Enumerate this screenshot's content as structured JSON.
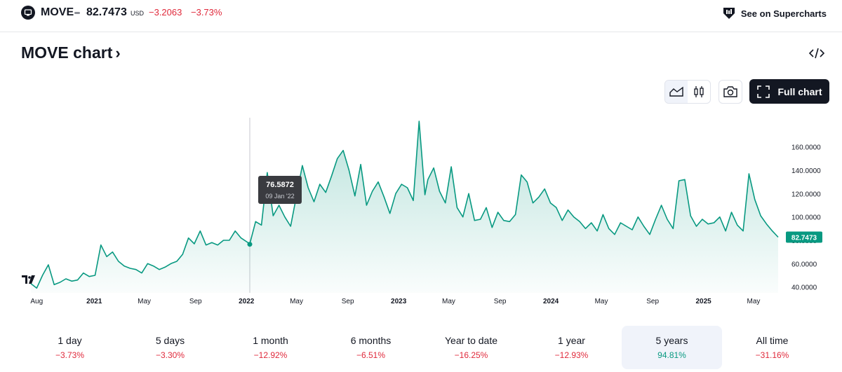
{
  "header": {
    "symbol": "MOVE",
    "price": "82.7473",
    "currency": "USD",
    "change": "−3.2063",
    "change_percent": "−3.73%",
    "supercharts_label": "See on Supercharts"
  },
  "title": {
    "text": "MOVE chart",
    "chevron": "›"
  },
  "toolbar": {
    "full_chart_label": "Full chart"
  },
  "icons": [
    "symbol-logo-icon",
    "supercharts-icon",
    "embed-code-icon",
    "area-chart-icon",
    "candles-icon",
    "camera-icon",
    "fullscreen-icon"
  ],
  "colors": {
    "line": "#089981",
    "negative": "#e0293b",
    "positive": "#089981",
    "price_label_bg": "#089981",
    "tooltip_bg": "#3a3b40"
  },
  "chart_data": {
    "type": "area",
    "x": [
      "2020-08-02",
      "2020-08-16",
      "2020-08-30",
      "2020-09-13",
      "2020-09-27",
      "2020-10-11",
      "2020-10-25",
      "2020-11-08",
      "2020-11-22",
      "2020-12-06",
      "2020-12-20",
      "2021-01-03",
      "2021-01-17",
      "2021-01-31",
      "2021-02-14",
      "2021-02-28",
      "2021-03-14",
      "2021-03-28",
      "2021-04-11",
      "2021-04-25",
      "2021-05-09",
      "2021-05-23",
      "2021-06-06",
      "2021-06-20",
      "2021-07-04",
      "2021-07-18",
      "2021-08-01",
      "2021-08-15",
      "2021-08-29",
      "2021-09-12",
      "2021-09-26",
      "2021-10-10",
      "2021-10-24",
      "2021-11-07",
      "2021-11-21",
      "2021-12-05",
      "2021-12-19",
      "2022-01-09",
      "2022-01-23",
      "2022-02-06",
      "2022-02-20",
      "2022-03-06",
      "2022-03-20",
      "2022-04-03",
      "2022-04-17",
      "2022-05-01",
      "2022-05-15",
      "2022-05-29",
      "2022-06-12",
      "2022-06-26",
      "2022-07-10",
      "2022-07-24",
      "2022-08-07",
      "2022-08-21",
      "2022-09-04",
      "2022-09-18",
      "2022-10-02",
      "2022-10-16",
      "2022-10-30",
      "2022-11-13",
      "2022-11-27",
      "2022-12-11",
      "2022-12-25",
      "2023-01-08",
      "2023-01-22",
      "2023-02-05",
      "2023-02-19",
      "2023-03-05",
      "2023-03-12",
      "2023-03-26",
      "2023-04-09",
      "2023-04-23",
      "2023-05-07",
      "2023-05-21",
      "2023-06-04",
      "2023-06-18",
      "2023-07-02",
      "2023-07-16",
      "2023-07-30",
      "2023-08-13",
      "2023-08-27",
      "2023-09-10",
      "2023-09-24",
      "2023-10-08",
      "2023-10-22",
      "2023-11-05",
      "2023-11-19",
      "2023-12-03",
      "2023-12-17",
      "2023-12-31",
      "2024-01-14",
      "2024-01-28",
      "2024-02-11",
      "2024-02-25",
      "2024-03-10",
      "2024-03-24",
      "2024-04-07",
      "2024-04-21",
      "2024-05-05",
      "2024-05-19",
      "2024-06-02",
      "2024-06-16",
      "2024-06-30",
      "2024-07-14",
      "2024-07-28",
      "2024-08-11",
      "2024-08-25",
      "2024-09-08",
      "2024-09-22",
      "2024-10-06",
      "2024-10-20",
      "2024-11-03",
      "2024-11-17",
      "2024-12-01",
      "2024-12-15",
      "2024-12-29",
      "2025-01-12",
      "2025-01-26",
      "2025-02-09",
      "2025-02-23",
      "2025-03-09",
      "2025-03-23",
      "2025-04-06",
      "2025-04-20",
      "2025-05-04",
      "2025-05-18",
      "2025-06-01",
      "2025-06-15",
      "2025-06-29"
    ],
    "values": [
      43,
      39,
      50,
      59,
      42,
      44,
      47,
      45,
      46,
      52,
      49,
      50,
      76,
      66,
      70,
      62,
      58,
      56,
      55,
      52,
      60,
      58,
      55,
      57,
      60,
      62,
      68,
      82,
      77,
      88,
      76,
      78,
      76,
      80,
      80,
      88,
      82,
      77,
      96,
      93,
      138,
      101,
      110,
      100,
      92,
      118,
      144,
      125,
      113,
      128,
      121,
      135,
      150,
      157,
      140,
      118,
      145,
      110,
      122,
      130,
      117,
      103,
      120,
      128,
      125,
      114,
      182,
      119,
      132,
      142,
      122,
      112,
      143,
      108,
      100,
      120,
      97,
      98,
      108,
      91,
      104,
      97,
      96,
      102,
      136,
      130,
      112,
      117,
      124,
      112,
      108,
      97,
      106,
      100,
      96,
      90,
      95,
      88,
      102,
      90,
      85,
      95,
      92,
      89,
      100,
      92,
      85,
      98,
      110,
      98,
      90,
      131,
      132,
      101,
      92,
      98,
      94,
      95,
      100,
      88,
      104,
      93,
      88,
      137,
      115,
      101,
      94,
      88,
      82.7
    ],
    "title": "MOVE chart",
    "ylim": [
      35,
      185
    ],
    "y_ticks": [
      40,
      60,
      80,
      100,
      120,
      140,
      160
    ],
    "y_tick_labels": [
      "40.0000",
      "60.0000",
      "80.0000",
      "100.0000",
      "120.0000",
      "140.0000",
      "160.0000"
    ],
    "x_ticks": [
      {
        "date": "2020-08-01",
        "label": "Aug",
        "year": false
      },
      {
        "date": "2021-01-01",
        "label": "2021",
        "year": true
      },
      {
        "date": "2021-05-01",
        "label": "May",
        "year": false
      },
      {
        "date": "2021-09-01",
        "label": "Sep",
        "year": false
      },
      {
        "date": "2022-01-01",
        "label": "2022",
        "year": true
      },
      {
        "date": "2022-05-01",
        "label": "May",
        "year": false
      },
      {
        "date": "2022-09-01",
        "label": "Sep",
        "year": false
      },
      {
        "date": "2023-01-01",
        "label": "2023",
        "year": true
      },
      {
        "date": "2023-05-01",
        "label": "May",
        "year": false
      },
      {
        "date": "2023-09-01",
        "label": "Sep",
        "year": false
      },
      {
        "date": "2024-01-01",
        "label": "2024",
        "year": true
      },
      {
        "date": "2024-05-01",
        "label": "May",
        "year": false
      },
      {
        "date": "2024-09-01",
        "label": "Sep",
        "year": false
      },
      {
        "date": "2025-01-01",
        "label": "2025",
        "year": true
      },
      {
        "date": "2025-05-01",
        "label": "May",
        "year": false
      }
    ],
    "x_range": [
      "2020-07-23",
      "2025-07-04"
    ],
    "last_price_label": "82.7473",
    "tooltip": {
      "value": "76.5872",
      "date": "09 Jan '22",
      "x": "2022-01-09",
      "y": 76.5872
    },
    "grid": false
  },
  "periods": [
    {
      "label": "1 day",
      "value": "−3.73%",
      "sign": "neg",
      "active": false
    },
    {
      "label": "5 days",
      "value": "−3.30%",
      "sign": "neg",
      "active": false
    },
    {
      "label": "1 month",
      "value": "−12.92%",
      "sign": "neg",
      "active": false
    },
    {
      "label": "6 months",
      "value": "−6.51%",
      "sign": "neg",
      "active": false
    },
    {
      "label": "Year to date",
      "value": "−16.25%",
      "sign": "neg",
      "active": false
    },
    {
      "label": "1 year",
      "value": "−12.93%",
      "sign": "neg",
      "active": false
    },
    {
      "label": "5 years",
      "value": "94.81%",
      "sign": "pos",
      "active": true
    },
    {
      "label": "All time",
      "value": "−31.16%",
      "sign": "neg",
      "active": false
    }
  ]
}
